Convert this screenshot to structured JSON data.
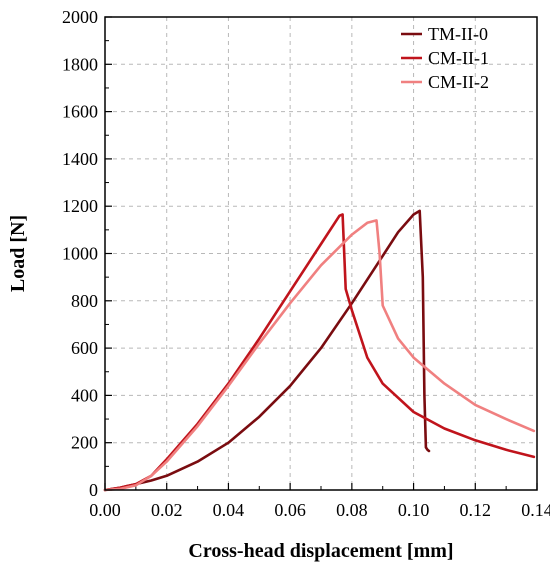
{
  "chart_data": {
    "type": "line",
    "title": "",
    "xlabel": "Cross-head displacement [mm]",
    "ylabel": "Load [N]",
    "xlim": [
      0.0,
      0.14
    ],
    "ylim": [
      0,
      2000
    ],
    "xticks": [
      "0.00",
      "0.02",
      "0.04",
      "0.06",
      "0.08",
      "0.10",
      "0.12",
      "0.14"
    ],
    "yticks": [
      "0",
      "200",
      "400",
      "600",
      "800",
      "1000",
      "1200",
      "1400",
      "1600",
      "1800",
      "2000"
    ],
    "grid": true,
    "legend_position": "top-right",
    "series": [
      {
        "name": "TM-II-0",
        "color": "#7a0c10",
        "x": [
          0.0,
          0.005,
          0.01,
          0.015,
          0.02,
          0.03,
          0.04,
          0.05,
          0.06,
          0.07,
          0.08,
          0.09,
          0.095,
          0.1,
          0.102,
          0.103,
          0.1035,
          0.104,
          0.1045,
          0.105
        ],
        "y": [
          0,
          10,
          25,
          40,
          60,
          120,
          200,
          310,
          440,
          600,
          790,
          990,
          1090,
          1165,
          1180,
          900,
          400,
          180,
          170,
          165
        ]
      },
      {
        "name": "CM-II-1",
        "color": "#c0141c",
        "x": [
          0.0,
          0.005,
          0.01,
          0.015,
          0.02,
          0.03,
          0.04,
          0.05,
          0.06,
          0.07,
          0.076,
          0.077,
          0.078,
          0.08,
          0.085,
          0.09,
          0.1,
          0.11,
          0.12,
          0.13,
          0.139
        ],
        "y": [
          0,
          10,
          25,
          60,
          130,
          280,
          450,
          640,
          840,
          1040,
          1160,
          1165,
          850,
          760,
          560,
          450,
          330,
          260,
          210,
          170,
          140
        ]
      },
      {
        "name": "CM-II-2",
        "color": "#f08080",
        "x": [
          0.0,
          0.005,
          0.01,
          0.015,
          0.02,
          0.03,
          0.04,
          0.05,
          0.06,
          0.07,
          0.08,
          0.085,
          0.088,
          0.089,
          0.09,
          0.095,
          0.1,
          0.11,
          0.12,
          0.13,
          0.139
        ],
        "y": [
          0,
          5,
          20,
          60,
          120,
          270,
          440,
          620,
          790,
          950,
          1080,
          1130,
          1140,
          1000,
          780,
          640,
          560,
          450,
          360,
          300,
          250
        ]
      }
    ]
  }
}
